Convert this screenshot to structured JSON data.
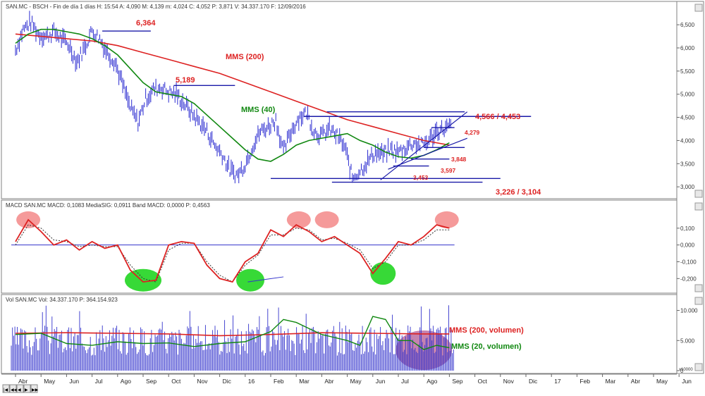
{
  "chart_data": [
    {
      "type": "line",
      "panel": "price",
      "header": "SAN.MC - BSCH - Fin de día 1 días H: 15:54 A: 4,090 M: 4,139 m: 4,024 C: 4,052 P: 3,871 V: 34.337.170 F: 12/09/2016",
      "ylim": [
        2.85,
        6.7
      ],
      "y_ticks": [
        "6,500",
        "6,000",
        "5,500",
        "5,000",
        "4,500",
        "4,000",
        "3,500",
        "3,000"
      ],
      "y_tick_values": [
        6.5,
        6.0,
        5.5,
        5.0,
        4.5,
        4.0,
        3.5,
        3.0
      ],
      "grid": false,
      "series": [
        {
          "name": "",
          "role": "price",
          "color": "#2a2ad0",
          "x": [
            0,
            0.3,
            0.6,
            0.9,
            1.2,
            1.5,
            1.8,
            2.1,
            2.4,
            2.7,
            3.0,
            3.3,
            3.6,
            3.9,
            4.2,
            4.5,
            4.8,
            5.1,
            5.4,
            5.7,
            6.0,
            6.3,
            6.6,
            6.9,
            7.2,
            7.5,
            7.8,
            8.1,
            8.4,
            8.7,
            9.0,
            9.3,
            9.6,
            9.9,
            10.2,
            10.5,
            10.8,
            11.1,
            11.4,
            11.7,
            12.0,
            12.3,
            12.6,
            12.9,
            13.2,
            13.5,
            13.8,
            14.1,
            14.4,
            14.7,
            15.0,
            15.3,
            15.6,
            15.9,
            16.2,
            16.5,
            16.8,
            17.1
          ],
          "values": [
            5.95,
            6.4,
            6.55,
            6.3,
            6.25,
            6.35,
            6.2,
            6.05,
            5.7,
            6.0,
            6.38,
            6.2,
            5.9,
            5.7,
            5.2,
            4.7,
            4.4,
            4.9,
            5.1,
            5.15,
            5.05,
            5.0,
            4.8,
            4.6,
            4.4,
            4.2,
            3.9,
            3.7,
            3.35,
            3.25,
            3.5,
            3.9,
            4.2,
            4.3,
            4.45,
            3.75,
            4.2,
            4.5,
            4.6,
            4.2,
            4.1,
            4.25,
            4.1,
            3.85,
            3.2,
            3.35,
            3.55,
            3.75,
            3.7,
            3.8,
            3.75,
            3.85,
            3.95,
            3.9,
            4.0,
            4.2,
            4.25,
            4.3
          ]
        },
        {
          "name": "MMS (200)",
          "color": "#dd2222",
          "x": [
            0,
            1,
            2,
            3,
            4,
            5,
            6,
            7,
            8,
            9,
            10,
            11,
            12,
            13,
            14,
            15,
            16,
            17
          ],
          "values": [
            6.3,
            6.25,
            6.2,
            6.15,
            6.05,
            5.9,
            5.75,
            5.6,
            5.45,
            5.25,
            5.05,
            4.85,
            4.65,
            4.45,
            4.3,
            4.15,
            4.0,
            3.9
          ]
        },
        {
          "name": "MMS (40)",
          "color": "#118811",
          "x": [
            0,
            0.5,
            1,
            1.5,
            2,
            2.5,
            3,
            3.5,
            4,
            4.5,
            5,
            5.5,
            6,
            6.5,
            7,
            7.5,
            8,
            8.5,
            9,
            9.5,
            10,
            10.5,
            11,
            11.5,
            12,
            12.5,
            13,
            13.5,
            14,
            14.5,
            15,
            15.5,
            16,
            16.5,
            17
          ],
          "values": [
            6.1,
            6.3,
            6.4,
            6.4,
            6.35,
            6.3,
            6.2,
            6.05,
            5.85,
            5.55,
            5.25,
            5.05,
            5.0,
            4.95,
            4.8,
            4.55,
            4.3,
            4.05,
            3.8,
            3.6,
            3.55,
            3.7,
            3.9,
            4.0,
            4.05,
            4.1,
            4.15,
            4.0,
            3.9,
            3.75,
            3.65,
            3.62,
            3.68,
            3.8,
            3.95
          ]
        }
      ],
      "annotations": [
        "6,364",
        "5,189",
        "MMS (200)",
        "MMS (40)",
        "4,566 / 4,453",
        "4,279",
        "3,848",
        "3,597",
        "3,453",
        "3,226 / 3,104"
      ]
    },
    {
      "type": "line",
      "panel": "macd",
      "header": "MACD SAN.MC MACD: 0,1083 MediaSIG: 0,0911 Band MACD: 0,0000 P: 0,4563",
      "ylim": [
        -0.27,
        0.2
      ],
      "y_ticks": [
        "0,100",
        "0,000",
        "-0,100",
        "-0,200"
      ],
      "y_tick_values": [
        0.1,
        0.0,
        -0.1,
        -0.2
      ],
      "series": [
        {
          "name": "MACD",
          "color": "#dd2222",
          "x": [
            0,
            0.5,
            1,
            1.5,
            2,
            2.5,
            3,
            3.5,
            4,
            4.5,
            5,
            5.5,
            6,
            6.5,
            7,
            7.5,
            8,
            8.5,
            9,
            9.5,
            10,
            10.5,
            11,
            11.5,
            12,
            12.5,
            13,
            13.5,
            14,
            14.5,
            15,
            15.5,
            16,
            16.5,
            17
          ],
          "values": [
            0.02,
            0.15,
            0.08,
            0.0,
            0.03,
            -0.03,
            0.02,
            -0.02,
            0.0,
            -0.15,
            -0.22,
            -0.21,
            0.0,
            0.02,
            0.01,
            -0.12,
            -0.2,
            -0.22,
            -0.1,
            -0.05,
            0.09,
            0.05,
            0.12,
            0.08,
            0.02,
            0.05,
            0.0,
            -0.05,
            -0.17,
            -0.08,
            0.02,
            0.0,
            0.05,
            0.12,
            0.1
          ]
        },
        {
          "name": "MediaSIG",
          "color": "#333333",
          "x": [
            0,
            0.5,
            1,
            1.5,
            2,
            2.5,
            3,
            3.5,
            4,
            4.5,
            5,
            5.5,
            6,
            6.5,
            7,
            7.5,
            8,
            8.5,
            9,
            9.5,
            10,
            10.5,
            11,
            11.5,
            12,
            12.5,
            13,
            13.5,
            14,
            14.5,
            15,
            15.5,
            16,
            16.5,
            17
          ],
          "values": [
            0.0,
            0.12,
            0.1,
            0.03,
            0.02,
            -0.01,
            0.0,
            -0.01,
            -0.01,
            -0.12,
            -0.2,
            -0.22,
            -0.03,
            0.01,
            0.01,
            -0.1,
            -0.18,
            -0.22,
            -0.12,
            -0.06,
            0.06,
            0.06,
            0.1,
            0.09,
            0.03,
            0.04,
            0.01,
            -0.03,
            -0.14,
            -0.1,
            0.0,
            0.0,
            0.03,
            0.09,
            0.09
          ]
        }
      ]
    },
    {
      "type": "bar",
      "panel": "volume",
      "header": "Vol SAN.MC Vol: 34.337.170 P: 364.154.923",
      "ylim": [
        0,
        11000000
      ],
      "y_ticks": [
        "10.000",
        "5.000",
        "0"
      ],
      "y_tick_values": [
        10000000,
        5000000,
        0
      ],
      "unit_badge": "x10000",
      "series": [
        {
          "name": "",
          "role": "volume",
          "color": "#3333cc"
        },
        {
          "name": "MMS (200, volumen)",
          "color": "#dd2222",
          "x": [
            0,
            2,
            4,
            6,
            8,
            10,
            12,
            14,
            16,
            17
          ],
          "values": [
            6200000,
            6300000,
            6200000,
            6100000,
            5800000,
            6000000,
            6300000,
            6200000,
            6100000,
            6100000
          ]
        },
        {
          "name": "MMS (20, volumen)",
          "color": "#118811",
          "x": [
            0,
            1,
            2,
            3,
            4,
            5,
            6,
            7,
            8,
            9,
            10,
            10.5,
            11,
            11.5,
            12,
            12.5,
            13,
            13.5,
            14,
            14.5,
            15,
            15.5,
            16,
            16.5,
            17
          ],
          "values": [
            6000000,
            6200000,
            4500000,
            4200000,
            4800000,
            4500000,
            4600000,
            4000000,
            4500000,
            4800000,
            6500000,
            8500000,
            8000000,
            7000000,
            6000000,
            5500000,
            5000000,
            4200000,
            9000000,
            8500000,
            5000000,
            5000000,
            3500000,
            4200000,
            3800000
          ]
        }
      ]
    }
  ],
  "x_axis": {
    "labels": [
      "Abr",
      "May",
      "Jun",
      "Jul",
      "Ago",
      "Sep",
      "Oct",
      "Nov",
      "Dic",
      "16",
      "Feb",
      "Mar",
      "Abr",
      "May",
      "Jun",
      "Jul",
      "Ago",
      "Sep",
      "Oct",
      "Nov",
      "Dic",
      "17",
      "Feb",
      "Mar",
      "Abr",
      "May",
      "Jun"
    ]
  },
  "overlays": {
    "macd_peaks": "red-circles",
    "macd_troughs": "green-circles",
    "volume_highlight": "purple-ellipse"
  },
  "nav_buttons": [
    "|◀",
    "◀◀",
    "◀",
    "▶",
    "▶▶"
  ]
}
